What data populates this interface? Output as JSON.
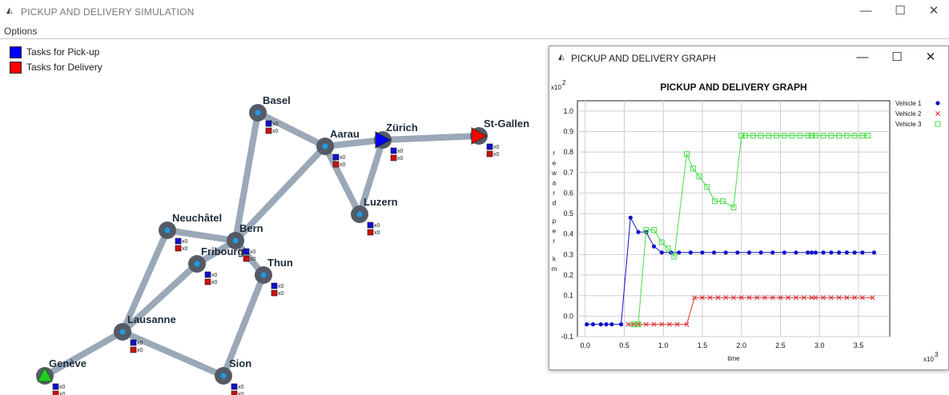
{
  "window": {
    "title": "PICKUP AND DELIVERY SIMULATION",
    "icon": "app-logo-icon",
    "controls": [
      "—",
      "☐",
      "✕"
    ]
  },
  "menu": {
    "options": "Options"
  },
  "legend": [
    {
      "label": "Tasks for Pick-up",
      "color": "#0000ff"
    },
    {
      "label": "Tasks for Delivery",
      "color": "#ff0000"
    }
  ],
  "map": {
    "road_color": "#9aa8b8",
    "node_color": "#555b66",
    "node_center_color": "#1e9be0",
    "cities": [
      {
        "name": "Basel",
        "pickup": "x0",
        "delivery": "x0"
      },
      {
        "name": "Aarau",
        "pickup": "x0",
        "delivery": "x0"
      },
      {
        "name": "Zürich",
        "pickup": "x0",
        "delivery": "x0",
        "vehicle": "#0000ff"
      },
      {
        "name": "St-Gallen",
        "pickup": "x0",
        "delivery": "x0",
        "vehicle": "#ff0000"
      },
      {
        "name": "Luzern",
        "pickup": "x0",
        "delivery": "x0"
      },
      {
        "name": "Neuchâtel",
        "pickup": "x0",
        "delivery": "x0"
      },
      {
        "name": "Bern",
        "pickup": "x0",
        "delivery": "x0"
      },
      {
        "name": "Fribourg",
        "pickup": "x0",
        "delivery": "x0"
      },
      {
        "name": "Thun",
        "pickup": "x0",
        "delivery": "x0"
      },
      {
        "name": "Lausanne",
        "pickup": "x0",
        "delivery": "x0"
      },
      {
        "name": "Genève",
        "pickup": "x0",
        "delivery": "x0",
        "vehicle": "#22cc22"
      },
      {
        "name": "Sion",
        "pickup": "x0",
        "delivery": "x0"
      }
    ],
    "roads": [
      [
        "Basel",
        "Aarau"
      ],
      [
        "Basel",
        "Bern"
      ],
      [
        "Aarau",
        "Zürich"
      ],
      [
        "Aarau",
        "Luzern"
      ],
      [
        "Aarau",
        "Bern"
      ],
      [
        "Zürich",
        "St-Gallen"
      ],
      [
        "Zürich",
        "Luzern"
      ],
      [
        "Neuchâtel",
        "Bern"
      ],
      [
        "Neuchâtel",
        "Lausanne"
      ],
      [
        "Bern",
        "Fribourg"
      ],
      [
        "Bern",
        "Thun"
      ],
      [
        "Fribourg",
        "Lausanne"
      ],
      [
        "Thun",
        "Sion"
      ],
      [
        "Lausanne",
        "Genève"
      ],
      [
        "Lausanne",
        "Sion"
      ]
    ]
  },
  "graph_window": {
    "title": "PICKUP AND DELIVERY GRAPH",
    "icon": "app-logo-icon",
    "controls": [
      "—",
      "☐",
      "✕"
    ]
  },
  "chart_data": {
    "type": "line",
    "title": "PICKUP AND DELIVERY GRAPH",
    "xlabel": "time",
    "ylabel": "reward per km",
    "x_multiplier": "x10^3",
    "y_multiplier": "x10^2",
    "xlim": [
      -0.1,
      3.9
    ],
    "ylim": [
      -0.1,
      1.05
    ],
    "xticks": [
      "0.0",
      "0.5",
      "1.0",
      "1.5",
      "2.0",
      "2.5",
      "3.0",
      "3.5"
    ],
    "yticks": [
      "-0.1",
      "0.0",
      "0.1",
      "0.2",
      "0.3",
      "0.4",
      "0.5",
      "0.6",
      "0.7",
      "0.8",
      "0.9",
      "1.0"
    ],
    "grid": true,
    "legend_position": "right",
    "series": [
      {
        "name": "Vehicle 1",
        "color": "#1010cc",
        "marker": "dot",
        "x": [
          0.02,
          0.1,
          0.2,
          0.27,
          0.34,
          0.46,
          0.58,
          0.68,
          0.78,
          0.88,
          0.98,
          1.1,
          1.2,
          1.35,
          1.5,
          1.65,
          1.8,
          1.95,
          2.1,
          2.25,
          2.4,
          2.55,
          2.7,
          2.85,
          2.9,
          2.95,
          3.05,
          3.15,
          3.25,
          3.35,
          3.45,
          3.55,
          3.7
        ],
        "y": [
          -0.04,
          -0.04,
          -0.04,
          -0.04,
          -0.04,
          -0.04,
          0.48,
          0.41,
          0.41,
          0.34,
          0.31,
          0.31,
          0.31,
          0.31,
          0.31,
          0.31,
          0.31,
          0.31,
          0.31,
          0.31,
          0.31,
          0.31,
          0.31,
          0.31,
          0.31,
          0.31,
          0.31,
          0.31,
          0.31,
          0.31,
          0.31,
          0.31,
          0.31
        ]
      },
      {
        "name": "Vehicle 2",
        "color": "#e03030",
        "marker": "x",
        "x": [
          0.55,
          0.62,
          0.68,
          0.78,
          0.88,
          0.98,
          1.08,
          1.18,
          1.3,
          1.4,
          1.5,
          1.6,
          1.7,
          1.8,
          1.9,
          2.0,
          2.1,
          2.2,
          2.3,
          2.4,
          2.5,
          2.6,
          2.7,
          2.8,
          2.9,
          2.95,
          3.05,
          3.15,
          3.25,
          3.35,
          3.45,
          3.55,
          3.68
        ],
        "y": [
          -0.04,
          -0.04,
          -0.04,
          -0.04,
          -0.04,
          -0.04,
          -0.04,
          -0.04,
          -0.04,
          0.09,
          0.09,
          0.09,
          0.09,
          0.09,
          0.09,
          0.09,
          0.09,
          0.09,
          0.09,
          0.09,
          0.09,
          0.09,
          0.09,
          0.09,
          0.09,
          0.09,
          0.09,
          0.09,
          0.09,
          0.09,
          0.09,
          0.09,
          0.09
        ]
      },
      {
        "name": "Vehicle 3",
        "color": "#44dd44",
        "marker": "square",
        "x": [
          0.62,
          0.68,
          0.78,
          0.88,
          0.98,
          1.06,
          1.14,
          1.3,
          1.38,
          1.46,
          1.56,
          1.66,
          1.76,
          1.9,
          2.0,
          2.05,
          2.15,
          2.25,
          2.35,
          2.45,
          2.55,
          2.65,
          2.75,
          2.85,
          2.9,
          2.95,
          3.05,
          3.15,
          3.25,
          3.35,
          3.45,
          3.55,
          3.62
        ],
        "y": [
          -0.04,
          -0.04,
          0.42,
          0.42,
          0.36,
          0.33,
          0.29,
          0.79,
          0.72,
          0.68,
          0.63,
          0.56,
          0.56,
          0.53,
          0.88,
          0.88,
          0.88,
          0.88,
          0.88,
          0.88,
          0.88,
          0.88,
          0.88,
          0.88,
          0.88,
          0.88,
          0.88,
          0.88,
          0.88,
          0.88,
          0.88,
          0.88,
          0.88
        ]
      }
    ]
  }
}
